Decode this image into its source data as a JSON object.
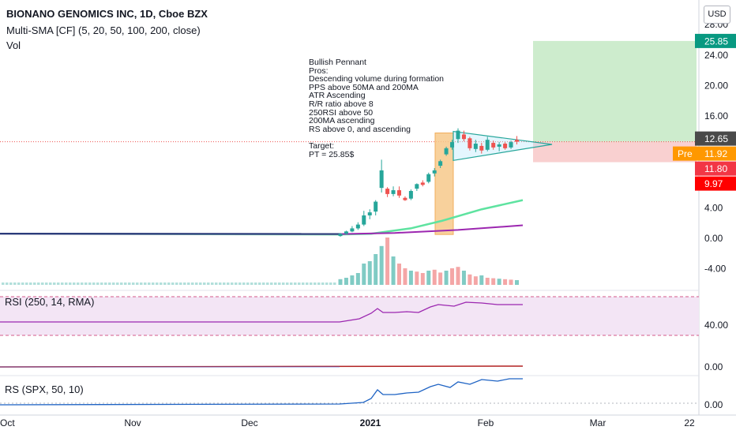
{
  "header": {
    "symbol_line": "BIONANO GENOMICS INC, 1D, Cboe BZX",
    "sma_line": "Multi-SMA [CF] (5, 20, 50, 100, 200, close)",
    "vol_line": "Vol"
  },
  "currency_button": "USD",
  "annotation": "Bullish Pennant\nPros:\nDescending volume during formation\nPPS above 50MA and 200MA\nATR Ascending\nR/R ratio above 8\n250RSI above 50\n200MA ascending\nRS above 0, and ascending\n\nTarget:\nPT = 25.85$",
  "price_axis": {
    "ticks": [
      "28.00",
      "24.00",
      "20.00",
      "16.00",
      "4.00",
      "0.00",
      "-4.00"
    ],
    "badges": [
      {
        "label": "25.85",
        "color": "#089981",
        "text_color": "#ffffff"
      },
      {
        "label": "12.65",
        "color": "#4a4a4a",
        "text_color": "#ffffff"
      },
      {
        "label": "11.92",
        "color": "#ff9800",
        "text_color": "#ffffff"
      },
      {
        "label": "11.80",
        "color": "#f23645",
        "text_color": "#ffffff"
      },
      {
        "label": "9.97",
        "color": "#ff0000",
        "text_color": "#ffffff"
      }
    ],
    "pre_label": "Pre"
  },
  "panes": {
    "rsi": {
      "label": "RSI (250, 14, RMA)",
      "tick": "40.00"
    },
    "macd": {
      "tick": "0.00"
    },
    "rs": {
      "label": "RS (SPX, 50, 10)",
      "tick": "0.00"
    }
  },
  "time_axis": {
    "labels": [
      "Oct",
      "Nov",
      "Dec",
      "2021",
      "Feb",
      "Mar",
      "22"
    ]
  },
  "colors": {
    "up": "#26a69a",
    "down": "#ef5350",
    "sma_fast": "#5ee3a0",
    "sma_slow": "#9c27b0",
    "sma_flat": "#2a3a7a",
    "rsi_line": "#9c27b0",
    "rs_line": "#1e63c4",
    "profit_zone": "#cdeccd",
    "loss_zone": "#f9d0d0",
    "flag_zone": "#f7c98b"
  },
  "chart_data": {
    "type": "candlestick",
    "title": "BIONANO GENOMICS INC, 1D, Cboe BZX",
    "price_ylim": [
      -6,
      29
    ],
    "position": {
      "entry": 12.65,
      "target": 25.85,
      "stop": 9.97
    },
    "last_price": 12.65,
    "premarket_price": 11.92,
    "stop_price_label": 11.8,
    "candles": [
      {
        "date": "2020-12-21",
        "o": 0.3,
        "h": 0.7,
        "l": 0.2,
        "c": 0.6
      },
      {
        "date": "2020-12-22",
        "o": 0.6,
        "h": 1.0,
        "l": 0.5,
        "c": 0.9
      },
      {
        "date": "2020-12-23",
        "o": 0.9,
        "h": 1.6,
        "l": 0.8,
        "c": 1.3
      },
      {
        "date": "2020-12-24",
        "o": 1.3,
        "h": 2.1,
        "l": 1.1,
        "c": 1.8
      },
      {
        "date": "2020-12-28",
        "o": 1.8,
        "h": 3.6,
        "l": 1.6,
        "c": 3.0
      },
      {
        "date": "2020-12-29",
        "o": 3.0,
        "h": 3.8,
        "l": 2.5,
        "c": 3.4
      },
      {
        "date": "2021-01-04",
        "o": 3.5,
        "h": 5.0,
        "l": 3.0,
        "c": 4.8
      },
      {
        "date": "2021-01-05",
        "o": 6.6,
        "h": 10.3,
        "l": 6.0,
        "c": 8.9
      },
      {
        "date": "2021-01-06",
        "o": 6.5,
        "h": 6.7,
        "l": 5.4,
        "c": 5.8
      },
      {
        "date": "2021-01-07",
        "o": 5.8,
        "h": 6.8,
        "l": 5.5,
        "c": 6.3
      },
      {
        "date": "2021-01-08",
        "o": 6.3,
        "h": 6.8,
        "l": 5.3,
        "c": 5.6
      },
      {
        "date": "2021-01-11",
        "o": 5.3,
        "h": 5.5,
        "l": 4.9,
        "c": 5.0
      },
      {
        "date": "2021-01-12",
        "o": 5.2,
        "h": 6.4,
        "l": 5.0,
        "c": 6.2
      },
      {
        "date": "2021-01-13",
        "o": 6.5,
        "h": 7.2,
        "l": 6.2,
        "c": 7.1
      },
      {
        "date": "2021-01-14",
        "o": 7.3,
        "h": 7.6,
        "l": 6.8,
        "c": 7.0
      },
      {
        "date": "2021-01-15",
        "o": 7.4,
        "h": 8.6,
        "l": 7.2,
        "c": 8.4
      },
      {
        "date": "2021-01-19",
        "o": 8.5,
        "h": 9.2,
        "l": 8.1,
        "c": 8.9
      },
      {
        "date": "2021-01-20",
        "o": 9.5,
        "h": 10.3,
        "l": 9.2,
        "c": 10.1
      },
      {
        "date": "2021-01-21",
        "o": 11.0,
        "h": 12.0,
        "l": 10.8,
        "c": 11.8
      },
      {
        "date": "2021-01-22",
        "o": 11.9,
        "h": 12.9,
        "l": 11.6,
        "c": 12.6
      },
      {
        "date": "2021-01-25",
        "o": 13.0,
        "h": 14.4,
        "l": 12.5,
        "c": 14.1
      },
      {
        "date": "2021-01-26",
        "o": 13.6,
        "h": 14.1,
        "l": 12.7,
        "c": 13.0
      },
      {
        "date": "2021-01-27",
        "o": 13.1,
        "h": 13.3,
        "l": 11.5,
        "c": 11.8
      },
      {
        "date": "2021-01-28",
        "o": 11.7,
        "h": 12.9,
        "l": 11.3,
        "c": 12.4
      },
      {
        "date": "2021-01-29",
        "o": 12.1,
        "h": 12.5,
        "l": 11.1,
        "c": 11.5
      },
      {
        "date": "2021-02-01",
        "o": 11.6,
        "h": 13.3,
        "l": 11.4,
        "c": 12.9
      },
      {
        "date": "2021-02-02",
        "o": 12.5,
        "h": 12.8,
        "l": 11.6,
        "c": 11.9
      },
      {
        "date": "2021-02-03",
        "o": 12.0,
        "h": 12.6,
        "l": 11.4,
        "c": 12.3
      },
      {
        "date": "2021-02-04",
        "o": 12.4,
        "h": 12.6,
        "l": 11.6,
        "c": 11.8
      },
      {
        "date": "2021-02-05",
        "o": 11.9,
        "h": 12.8,
        "l": 11.7,
        "c": 12.6
      },
      {
        "date": "2021-02-08",
        "o": 12.9,
        "h": 13.4,
        "l": 12.3,
        "c": 12.65
      }
    ],
    "volume_relative": [
      0.12,
      0.15,
      0.2,
      0.25,
      0.45,
      0.5,
      0.65,
      0.82,
      1.0,
      0.6,
      0.45,
      0.35,
      0.3,
      0.28,
      0.25,
      0.3,
      0.32,
      0.26,
      0.3,
      0.35,
      0.38,
      0.3,
      0.22,
      0.18,
      0.2,
      0.15,
      0.14,
      0.13,
      0.12,
      0.11,
      0.1
    ]
  }
}
